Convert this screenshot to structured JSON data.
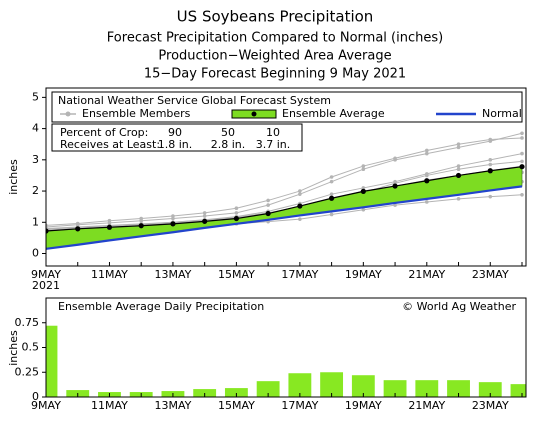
{
  "chart_data": [
    {
      "type": "line",
      "title": "US Soybeans Precipitation",
      "subtitle": [
        "Forecast Precipitation Compared to Normal (inches)",
        "Production−Weighted Area Average",
        "15−Day Forecast Beginning 9 May 2021"
      ],
      "ylabel": "inches",
      "categories": [
        "9MAY",
        null,
        "11MAY",
        null,
        "13MAY",
        null,
        "15MAY",
        null,
        "17MAY",
        null,
        "19MAY",
        null,
        "21MAY",
        null,
        "23MAY",
        null
      ],
      "year": "2021",
      "ylim": [
        -0.4,
        5.3
      ],
      "yticks": [
        0,
        1,
        2,
        3,
        4,
        5
      ],
      "legend_title": "National Weather Service Global Forecast System",
      "series": [
        {
          "name": "Ensemble Members",
          "color": "#b4b4b4",
          "values": [
            [
              0.85,
              0.92,
              0.98,
              1.05,
              1.12,
              1.2,
              1.3,
              1.55,
              1.9,
              2.3,
              2.7,
              3.0,
              3.2,
              3.4,
              3.6,
              3.85
            ],
            [
              0.8,
              0.85,
              0.9,
              0.95,
              1.0,
              1.08,
              1.18,
              1.35,
              1.6,
              1.9,
              2.1,
              2.3,
              2.55,
              2.8,
              3.0,
              3.2
            ],
            [
              0.75,
              0.8,
              0.85,
              0.9,
              0.98,
              1.05,
              1.15,
              1.3,
              1.5,
              1.75,
              2.0,
              2.15,
              2.35,
              2.5,
              2.65,
              2.8
            ],
            [
              0.7,
              0.74,
              0.78,
              0.82,
              0.88,
              0.95,
              1.02,
              1.15,
              1.3,
              1.5,
              1.7,
              1.85,
              2.0,
              2.1,
              2.2,
              2.3
            ],
            [
              0.9,
              0.96,
              1.05,
              1.12,
              1.2,
              1.3,
              1.45,
              1.7,
              2.0,
              2.45,
              2.8,
              3.05,
              3.3,
              3.5,
              3.65,
              3.7
            ],
            [
              0.68,
              0.72,
              0.75,
              0.79,
              0.84,
              0.9,
              0.95,
              1.02,
              1.1,
              1.25,
              1.4,
              1.55,
              1.65,
              1.75,
              1.82,
              1.88
            ],
            [
              0.78,
              0.83,
              0.88,
              0.93,
              1.0,
              1.07,
              1.16,
              1.3,
              1.45,
              1.7,
              1.95,
              2.25,
              2.5,
              2.7,
              2.85,
              2.95
            ],
            [
              0.72,
              0.77,
              0.82,
              0.86,
              0.92,
              0.98,
              1.05,
              1.2,
              1.4,
              1.62,
              1.85,
              2.05,
              2.2,
              2.35,
              2.5,
              2.6
            ]
          ]
        },
        {
          "name": "Ensemble Average",
          "color": "#000000",
          "values": [
            0.72,
            0.79,
            0.84,
            0.89,
            0.95,
            1.03,
            1.12,
            1.28,
            1.52,
            1.77,
            1.99,
            2.16,
            2.33,
            2.5,
            2.65,
            2.78
          ]
        },
        {
          "name": "Normal",
          "color": "#2244cc",
          "values": [
            0.15,
            0.28,
            0.42,
            0.55,
            0.68,
            0.82,
            0.95,
            1.08,
            1.22,
            1.35,
            1.48,
            1.62,
            1.75,
            1.88,
            2.02,
            2.15
          ]
        }
      ],
      "fill_color": "#7ddc22",
      "crop_table": {
        "row_labels": [
          "Percent of Crop:",
          "Receives at Least:"
        ],
        "percent": [
          90,
          50,
          10
        ],
        "amounts": [
          "1.8 in.",
          "2.8 in.",
          "3.7 in."
        ]
      }
    },
    {
      "type": "bar",
      "title": "Ensemble Average Daily Precipitation",
      "credit": "© World Ag Weather",
      "ylabel": "inches",
      "categories": [
        "9MAY",
        null,
        "11MAY",
        null,
        "13MAY",
        null,
        "15MAY",
        null,
        "17MAY",
        null,
        "19MAY",
        null,
        "21MAY",
        null,
        "23MAY",
        null
      ],
      "values": [
        0.72,
        0.07,
        0.05,
        0.05,
        0.06,
        0.08,
        0.09,
        0.16,
        0.24,
        0.25,
        0.22,
        0.17,
        0.17,
        0.17,
        0.15,
        0.13
      ],
      "color": "#88e822",
      "ylim": [
        0,
        1
      ],
      "yticks": [
        0,
        0.25,
        0.5,
        0.75
      ]
    }
  ]
}
